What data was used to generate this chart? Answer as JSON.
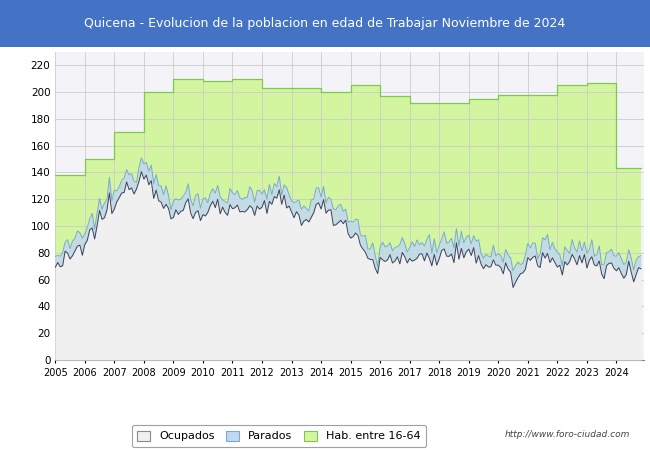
{
  "title": "Quicena - Evolucion de la poblacion en edad de Trabajar Noviembre de 2024",
  "title_bg": "#4472C4",
  "title_color": "white",
  "ylim": [
    0,
    230
  ],
  "yticks": [
    0,
    20,
    40,
    60,
    80,
    100,
    120,
    140,
    160,
    180,
    200,
    220
  ],
  "url_text": "http://www.foro-ciudad.com",
  "hab_color_fill": "#d4f5a0",
  "hab_color_line": "#7ec850",
  "parados_color_fill": "#c0d8f0",
  "parados_color_line": "#7aaad0",
  "ocupados_color_fill": "#f0f0f0",
  "ocupados_color_line": "#404060",
  "plot_bg": "#f4f4f8",
  "grid_color": "#cccccc"
}
